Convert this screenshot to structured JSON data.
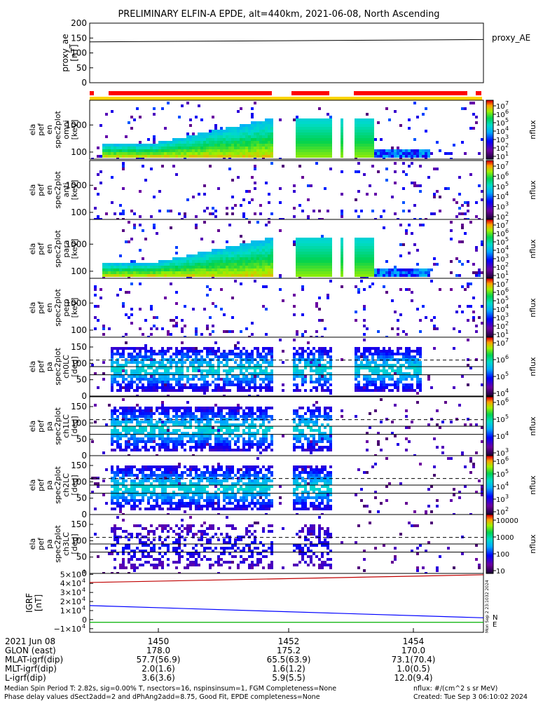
{
  "title": "PRELIMINARY ELFIN-A EPDE, alt=440km, 2021-06-08, North Ascending",
  "colors": {
    "ae_line": "#000000",
    "red_bar": "#ff0000",
    "yellow_bar": "#ffd400",
    "igrf_red": "#c00000",
    "igrf_blue": "#0000ff",
    "igrf_green": "#00b000",
    "dashed": "#000000"
  },
  "chart_data": [
    {
      "type": "line",
      "name": "proxy_ae_panel",
      "ylabel_lines": [
        "proxy_ae",
        "[nT]"
      ],
      "ylim": [
        0,
        200
      ],
      "yticks": [
        "200",
        "150",
        "100",
        "50",
        "0"
      ],
      "legend": "proxy_AE",
      "x": [
        0,
        1
      ],
      "y": [
        137,
        145
      ]
    },
    {
      "type": "heatmap",
      "name": "energy_spectrograms",
      "panels": [
        {
          "label_lines": [
            "ela",
            "pef",
            "en",
            "spec2plot",
            "omni",
            "[keV]"
          ],
          "yticks": [
            "1000",
            "100"
          ],
          "cbar_ticks": [
            "10",
            "10",
            "10",
            "10",
            "10",
            "10",
            "10"
          ],
          "cbar_exp": [
            "7",
            "6",
            "5",
            "4",
            "3",
            "2",
            "1"
          ],
          "cbar_label": "nflux"
        },
        {
          "label_lines": [
            "ela",
            "pef",
            "en",
            "spec2plot",
            "anti",
            "[keV]"
          ],
          "yticks": [
            "1000",
            "100"
          ],
          "cbar_ticks": [
            "10",
            "10",
            "10",
            "10",
            "10",
            "10"
          ],
          "cbar_exp": [
            "7",
            "6",
            "5",
            "4",
            "3",
            "2"
          ],
          "cbar_label": "nflux"
        },
        {
          "label_lines": [
            "ela",
            "pef",
            "en",
            "spec2plot",
            "para",
            "[keV]"
          ],
          "yticks": [
            "1000",
            "100"
          ],
          "cbar_ticks": [
            "10",
            "10",
            "10",
            "10",
            "10",
            "10",
            "10"
          ],
          "cbar_exp": [
            "7",
            "6",
            "5",
            "4",
            "3",
            "2",
            "1"
          ],
          "cbar_label": "nflux"
        },
        {
          "label_lines": [
            "ela",
            "pef",
            "en",
            "spec2plot",
            "perp",
            "[keV]"
          ],
          "yticks": [
            "1000",
            "100"
          ],
          "cbar_ticks": [
            "10",
            "10",
            "10",
            "10",
            "10",
            "10",
            "10"
          ],
          "cbar_exp": [
            "7",
            "6",
            "5",
            "4",
            "3",
            "2",
            "1"
          ],
          "cbar_label": "nflux"
        }
      ]
    },
    {
      "type": "heatmap",
      "name": "pitch_angle_spectrograms",
      "yticks": [
        "150",
        "100",
        "50",
        "0"
      ],
      "panels": [
        {
          "label_lines": [
            "ela",
            "pef",
            "pa",
            "spec2plot",
            "ch0LC",
            "[deg]"
          ],
          "cbar_ticks": [
            "10",
            "10",
            "10",
            "10"
          ],
          "cbar_exp": [
            "7",
            "6",
            "5",
            "4"
          ],
          "cbar_label": "nflux"
        },
        {
          "label_lines": [
            "ela",
            "pef",
            "pa",
            "spec2plot",
            "ch1LC",
            "[deg]"
          ],
          "cbar_ticks": [
            "10",
            "10",
            "10",
            "10"
          ],
          "cbar_exp": [
            "6",
            "5",
            "4",
            "3"
          ],
          "cbar_label": "nflux"
        },
        {
          "label_lines": [
            "ela",
            "pef",
            "pa",
            "spec2plot",
            "ch2LC",
            "[deg]"
          ],
          "cbar_ticks": [
            "10",
            "10",
            "10",
            "10",
            "10"
          ],
          "cbar_exp": [
            "6",
            "5",
            "4",
            "3",
            "2"
          ],
          "cbar_label": "nflux"
        },
        {
          "label_lines": [
            "ela",
            "pef",
            "pa",
            "spec2plot",
            "ch3LC",
            "[deg]"
          ],
          "cbar_ticks": [
            "10000",
            "1000",
            "100",
            "10"
          ],
          "cbar_exp": [],
          "cbar_label": "nflux"
        }
      ]
    },
    {
      "type": "line",
      "name": "igrf_panel",
      "ylabel_lines": [
        "IGRF",
        "[nT]"
      ],
      "yticks": [
        {
          "mant": "5",
          "exp": "4",
          "v": 5
        },
        {
          "mant": "4",
          "exp": "4",
          "v": 4
        },
        {
          "mant": "3",
          "exp": "4",
          "v": 3
        },
        {
          "mant": "2",
          "exp": "4",
          "v": 2
        },
        {
          "mant": "1",
          "exp": "4",
          "v": 1
        },
        {
          "mant": "0",
          "exp": "",
          "v": 0
        },
        {
          "mant": "−1",
          "exp": "4",
          "v": -1
        }
      ],
      "ylim": [
        -1.4,
        5.1
      ],
      "series": [
        {
          "name": "N",
          "color": "#c00000",
          "x": [
            0,
            1
          ],
          "y": [
            4.1,
            4.95
          ]
        },
        {
          "name": "E",
          "color": "#0000ff",
          "x": [
            0,
            1
          ],
          "y": [
            1.55,
            0.2
          ]
        },
        {
          "name": "",
          "color": "#00b000",
          "x": [
            0,
            1
          ],
          "y": [
            -0.3,
            -0.3
          ]
        }
      ],
      "legend": [
        "N",
        "E"
      ],
      "side_text": "Mon Sep 2 23:1032 2024"
    }
  ],
  "time_axis": {
    "labels": [
      "1450",
      "1452",
      "1454"
    ],
    "rows": [
      {
        "name": "2021 Jun 08",
        "values": [
          "",
          "",
          ""
        ]
      },
      {
        "name": "GLON (east)",
        "values": [
          "178.0",
          "175.2",
          "170.0"
        ]
      },
      {
        "name": "MLAT-igrf(dip)",
        "values": [
          "57.7(56.9)",
          "65.5(63.9)",
          "73.1(70.4)"
        ]
      },
      {
        "name": "MLT-igrf(dip)",
        "values": [
          "2.0(1.6)",
          "1.6(1.2)",
          "1.0(0.5)"
        ]
      },
      {
        "name": "L-igrf(dip)",
        "values": [
          "3.6(3.6)",
          "5.9(5.5)",
          "12.0(9.4)"
        ]
      }
    ]
  },
  "footer": {
    "left1": "Median Spin Period T: 2.82s, sig=0.00% T, nsectors=16, nspinsinsum=1, FGM Completeness=None",
    "left2": "Phase delay values dSect2add=2 and dPhAng2add=8.75, Good Fit, EPDE completeness=None",
    "right1": "nflux: #/(cm^2 s sr MeV)",
    "right2": "Created: Tue Sep  3 06:10:02 2024"
  }
}
